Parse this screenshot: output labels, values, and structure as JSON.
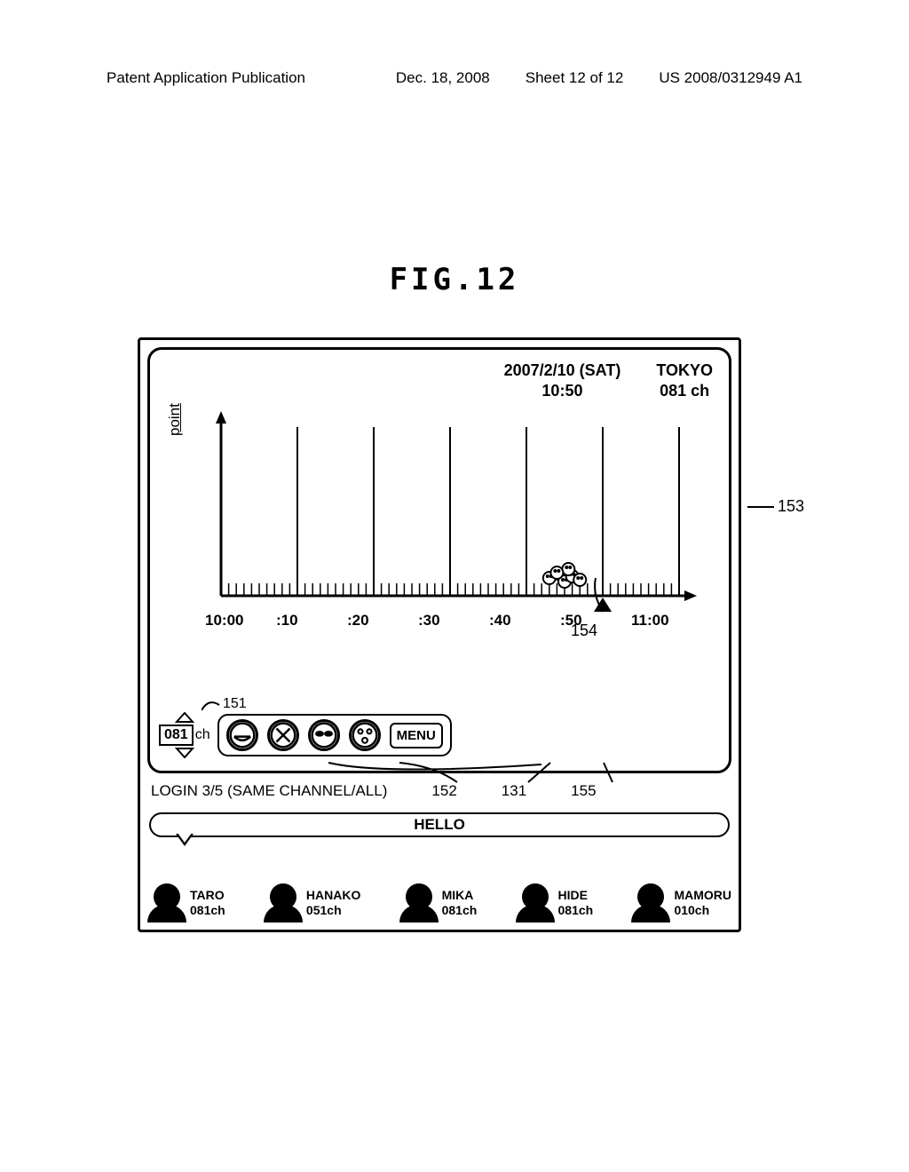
{
  "header": {
    "left": "Patent Application Publication",
    "date": "Dec. 18, 2008",
    "sheet": "Sheet 12 of 12",
    "pub_no": "US 2008/0312949 A1"
  },
  "figure_title": "FIG.12",
  "tv": {
    "date_line1": "2007/2/10 (SAT)",
    "date_line2": "10:50",
    "location": "TOKYO",
    "channel_line": "081 ch",
    "y_axis_label": "point",
    "x_ticks": [
      "10:00",
      ":10",
      ":20",
      ":30",
      ":40",
      ":50",
      "11:00"
    ],
    "chart": {
      "xlim": [
        0,
        60
      ],
      "major_tick_step": 10,
      "minor_ticks_per_major": 10,
      "marker_x": 50,
      "cluster_x_range": [
        42,
        48
      ],
      "cluster_count": 7,
      "gridline_color": "#000000",
      "axis_stroke": 3
    }
  },
  "channel_selector": {
    "value": "081",
    "unit": "ch"
  },
  "menu_label": "MENU",
  "refs": {
    "r151": "151",
    "r152": "152",
    "r131": "131",
    "r155": "155",
    "r153": "153",
    "r154": "154"
  },
  "login_text": "LOGIN 3/5 (SAME CHANNEL/ALL)",
  "bubble_text": "HELLO",
  "users": [
    {
      "name": "TARO",
      "ch": "081ch"
    },
    {
      "name": "HANAKO",
      "ch": "051ch"
    },
    {
      "name": "MIKA",
      "ch": "081ch"
    },
    {
      "name": "HIDE",
      "ch": "081ch"
    },
    {
      "name": "MAMORU",
      "ch": "010ch"
    }
  ],
  "colors": {
    "stroke": "#000000",
    "bg": "#ffffff"
  }
}
